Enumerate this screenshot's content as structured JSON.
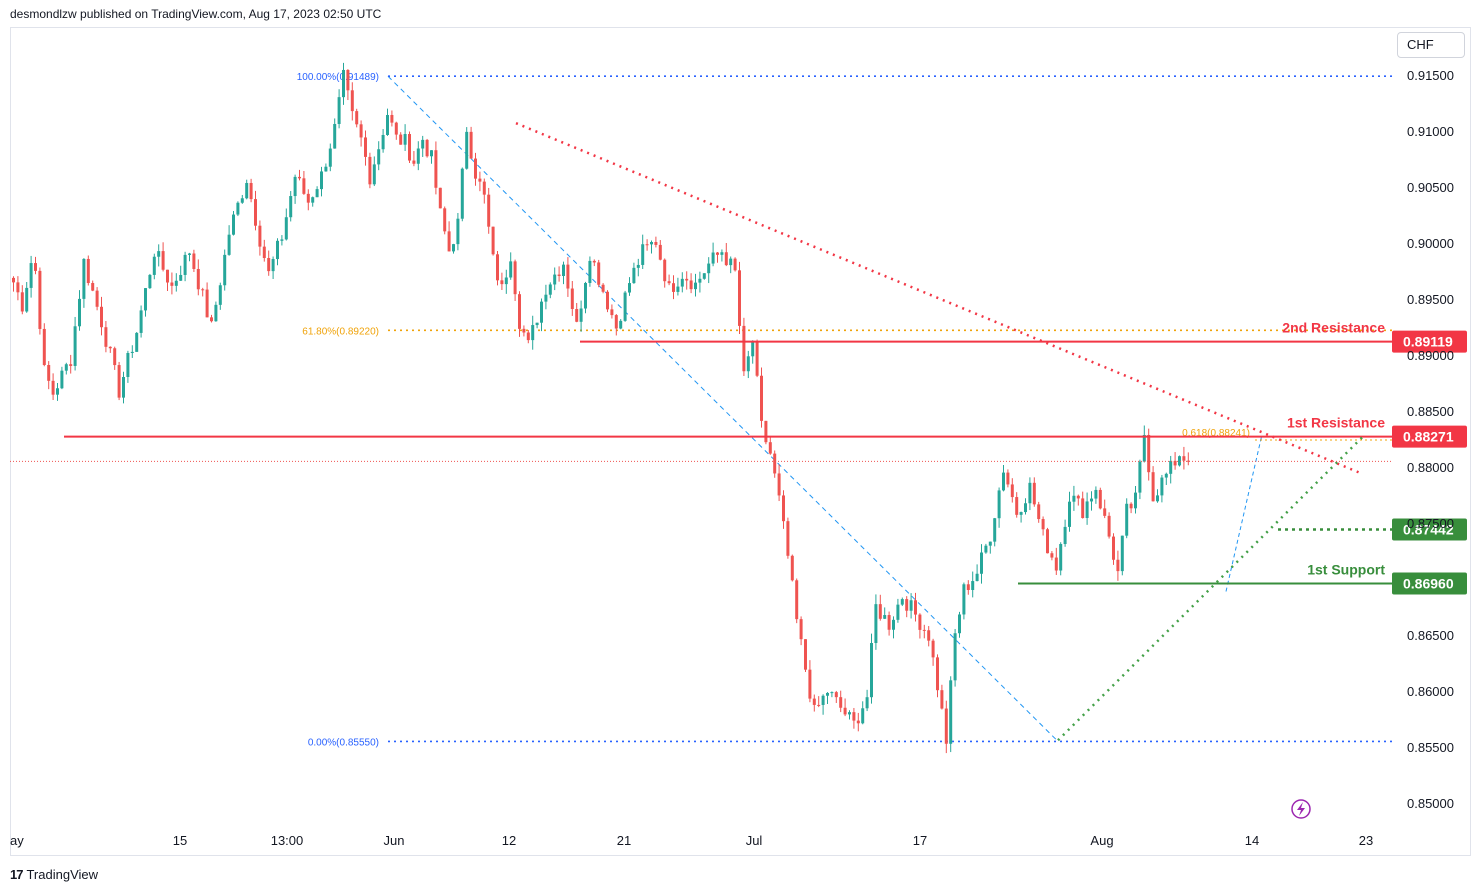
{
  "header": {
    "publisher_text": "desmondlzw published on TradingView.com, Aug 17, 2023 02:50 UTC"
  },
  "currency": "CHF",
  "branding": {
    "logo": "17",
    "name": "TradingView"
  },
  "colors": {
    "up": "#26a69a",
    "down": "#ef5350",
    "resistance": "#f23645",
    "support": "#388e3c",
    "fib_blue": "#2962ff",
    "fib_orange": "#f0a30a",
    "axis_text": "#131722"
  },
  "chart_data": {
    "type": "candlestick",
    "symbol_currency": "CHF",
    "x_tick_labels": [
      "ay",
      "15",
      "13:00",
      "Jun",
      "12",
      "21",
      "Jul",
      "17",
      "Aug",
      "14",
      "23"
    ],
    "y_tick_labels": [
      "0.91500",
      "0.91000",
      "0.90500",
      "0.90000",
      "0.89500",
      "0.89000",
      "0.88500",
      "0.88000",
      "0.87500",
      "0.86500",
      "0.86000",
      "0.85500",
      "0.85000"
    ],
    "ylim": [
      0.8495,
      0.9178
    ],
    "levels": [
      {
        "label": "2nd Resistance",
        "value": "0.89119",
        "type": "resistance"
      },
      {
        "label": "1st Resistance",
        "value": "0.88271",
        "type": "resistance"
      },
      {
        "label": "",
        "value": "0.87442",
        "type": "pivot"
      },
      {
        "label": "1st Support",
        "value": "0.86960",
        "type": "support"
      }
    ],
    "fib_retracement_1": [
      {
        "label": "100.00%(0.91489)",
        "value": 0.91489
      },
      {
        "label": "61.80%(0.89220)",
        "value": 0.8922
      },
      {
        "label": "0.00%(0.85550)",
        "value": 0.8555
      }
    ],
    "fib_retracement_2": [
      {
        "label": "0.618(0.88241)",
        "value": 0.88241
      }
    ],
    "trendlines": [
      {
        "name": "descending resistance trendline",
        "from": [
          "Jun 12",
          0.9107
        ],
        "to": [
          "Aug 19",
          0.8794
        ]
      },
      {
        "name": "ascending support trendline",
        "from": [
          "Jul 28",
          0.8556
        ],
        "to": [
          "Aug 21",
          0.8829
        ]
      }
    ],
    "current_price": 0.8805,
    "price_path": [
      [
        0,
        0.8965
      ],
      [
        2,
        0.8945
      ],
      [
        4,
        0.8983
      ],
      [
        5,
        0.8975
      ],
      [
        7,
        0.8885
      ],
      [
        9,
        0.8866
      ],
      [
        13,
        0.8897
      ],
      [
        16,
        0.8983
      ],
      [
        20,
        0.893
      ],
      [
        24,
        0.8868
      ],
      [
        28,
        0.8921
      ],
      [
        32,
        0.8993
      ],
      [
        36,
        0.8961
      ],
      [
        40,
        0.8993
      ],
      [
        45,
        0.8924
      ],
      [
        49,
        0.9009
      ],
      [
        53,
        0.9058
      ],
      [
        56,
        0.9004
      ],
      [
        58,
        0.8972
      ],
      [
        61,
        0.9006
      ],
      [
        64,
        0.906
      ],
      [
        67,
        0.9037
      ],
      [
        70,
        0.906
      ],
      [
        73,
        0.9102
      ],
      [
        75,
        0.9147
      ],
      [
        77,
        0.9112
      ],
      [
        79,
        0.9092
      ],
      [
        81,
        0.906
      ],
      [
        83,
        0.9086
      ],
      [
        85,
        0.9116
      ],
      [
        87,
        0.9093
      ],
      [
        89,
        0.909
      ],
      [
        91,
        0.9073
      ],
      [
        93,
        0.9093
      ],
      [
        95,
        0.9075
      ],
      [
        97,
        0.9025
      ],
      [
        99,
        0.8993
      ],
      [
        101,
        0.9017
      ],
      [
        103,
        0.9103
      ],
      [
        105,
        0.9063
      ],
      [
        107,
        0.904
      ],
      [
        109,
        0.8984
      ],
      [
        111,
        0.8958
      ],
      [
        113,
        0.8991
      ],
      [
        115,
        0.8931
      ],
      [
        117,
        0.8908
      ],
      [
        121,
        0.8961
      ],
      [
        125,
        0.8983
      ],
      [
        128,
        0.8925
      ],
      [
        131,
        0.8992
      ],
      [
        134,
        0.8958
      ],
      [
        137,
        0.8925
      ],
      [
        140,
        0.8965
      ],
      [
        143,
        0.8992
      ],
      [
        146,
        0.9002
      ],
      [
        149,
        0.8958
      ],
      [
        152,
        0.8973
      ],
      [
        155,
        0.8963
      ],
      [
        158,
        0.8981
      ],
      [
        161,
        0.8993
      ],
      [
        164,
        0.8973
      ],
      [
        166,
        0.8879
      ],
      [
        168,
        0.8913
      ],
      [
        170,
        0.8835
      ],
      [
        172,
        0.8812
      ],
      [
        174,
        0.877
      ],
      [
        176,
        0.872
      ],
      [
        178,
        0.8662
      ],
      [
        180,
        0.862
      ],
      [
        182,
        0.858
      ],
      [
        185,
        0.86
      ],
      [
        188,
        0.8585
      ],
      [
        191,
        0.857
      ],
      [
        194,
        0.8595
      ],
      [
        196,
        0.8675
      ],
      [
        199,
        0.866
      ],
      [
        202,
        0.8685
      ],
      [
        205,
        0.8668
      ],
      [
        208,
        0.865
      ],
      [
        210,
        0.8605
      ],
      [
        212,
        0.8556
      ],
      [
        214,
        0.865
      ],
      [
        216,
        0.869
      ],
      [
        219,
        0.8706
      ],
      [
        222,
        0.874
      ],
      [
        225,
        0.8799
      ],
      [
        228,
        0.876
      ],
      [
        231,
        0.8782
      ],
      [
        234,
        0.8738
      ],
      [
        237,
        0.8712
      ],
      [
        240,
        0.8775
      ],
      [
        243,
        0.8762
      ],
      [
        246,
        0.8782
      ],
      [
        249,
        0.8738
      ],
      [
        251,
        0.8705
      ],
      [
        253,
        0.876
      ],
      [
        255,
        0.877
      ],
      [
        257,
        0.883
      ],
      [
        259,
        0.8774
      ],
      [
        261,
        0.8787
      ],
      [
        263,
        0.8798
      ],
      [
        265,
        0.8812
      ],
      [
        267,
        0.8805
      ]
    ],
    "grid": false,
    "legend": "none"
  }
}
